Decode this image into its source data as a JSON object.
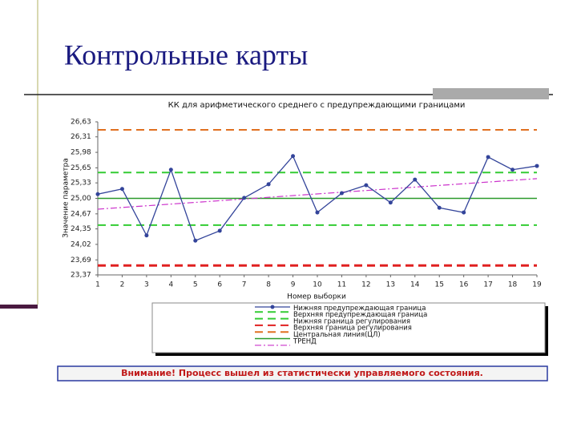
{
  "slide": {
    "title": "Контрольные карты"
  },
  "chart_data": {
    "type": "line",
    "title": "КК для арифметического среднего с предупреждающими границами",
    "ylabel": "Значение параметра",
    "xlabel": "Номер выборки",
    "x": [
      1,
      2,
      3,
      4,
      5,
      6,
      7,
      8,
      9,
      10,
      11,
      12,
      13,
      14,
      15,
      16,
      17,
      18,
      19
    ],
    "xlim": [
      1,
      19
    ],
    "xticks": [
      1,
      2,
      3,
      4,
      5,
      6,
      7,
      8,
      9,
      10,
      11,
      12,
      13,
      14,
      15,
      16,
      17,
      18,
      19
    ],
    "ylim": [
      23.37,
      26.63
    ],
    "yticks": [
      {
        "value": 23.37,
        "label": "23,37"
      },
      {
        "value": 23.69,
        "label": "23,69"
      },
      {
        "value": 24.02,
        "label": "24,02"
      },
      {
        "value": 24.35,
        "label": "24,35"
      },
      {
        "value": 24.67,
        "label": "24,67"
      },
      {
        "value": 25.0,
        "label": "25,00"
      },
      {
        "value": 25.33,
        "label": "25,33"
      },
      {
        "value": 25.65,
        "label": "25,65"
      },
      {
        "value": 25.98,
        "label": "25,98"
      },
      {
        "value": 26.31,
        "label": "26,31"
      },
      {
        "value": 26.63,
        "label": "26,63"
      }
    ],
    "series": [
      {
        "color": "#33449a",
        "values": [
          25.09,
          25.2,
          24.21,
          25.61,
          24.1,
          24.31,
          25.01,
          25.3,
          25.9,
          24.7,
          25.11,
          25.28,
          24.91,
          25.4,
          24.8,
          24.7,
          25.88,
          25.61,
          25.69
        ]
      }
    ],
    "limits": [
      {
        "name": "Нижняя предупреждающая граница",
        "color": "#33cc33",
        "value": 24.43
      },
      {
        "name": "Верхняя предупреждающая граница",
        "color": "#33cc33",
        "value": 25.55
      },
      {
        "name": "Нижняя граница регулирования",
        "color": "#e02020",
        "value": 23.57
      },
      {
        "name": "Верхняя граница регулирования",
        "color": "#e07020",
        "value": 26.46
      },
      {
        "name": "Центральная линия(ЦЛ)",
        "color": "#2a9a2a",
        "value": 25.0
      }
    ],
    "trend": {
      "name": "ТРЕНД",
      "color": "#cc33cc",
      "x": [
        1,
        19
      ],
      "values": [
        24.77,
        25.42
      ]
    }
  },
  "notice": "Внимание! Процесс вышел из статистически управляемого состояния."
}
